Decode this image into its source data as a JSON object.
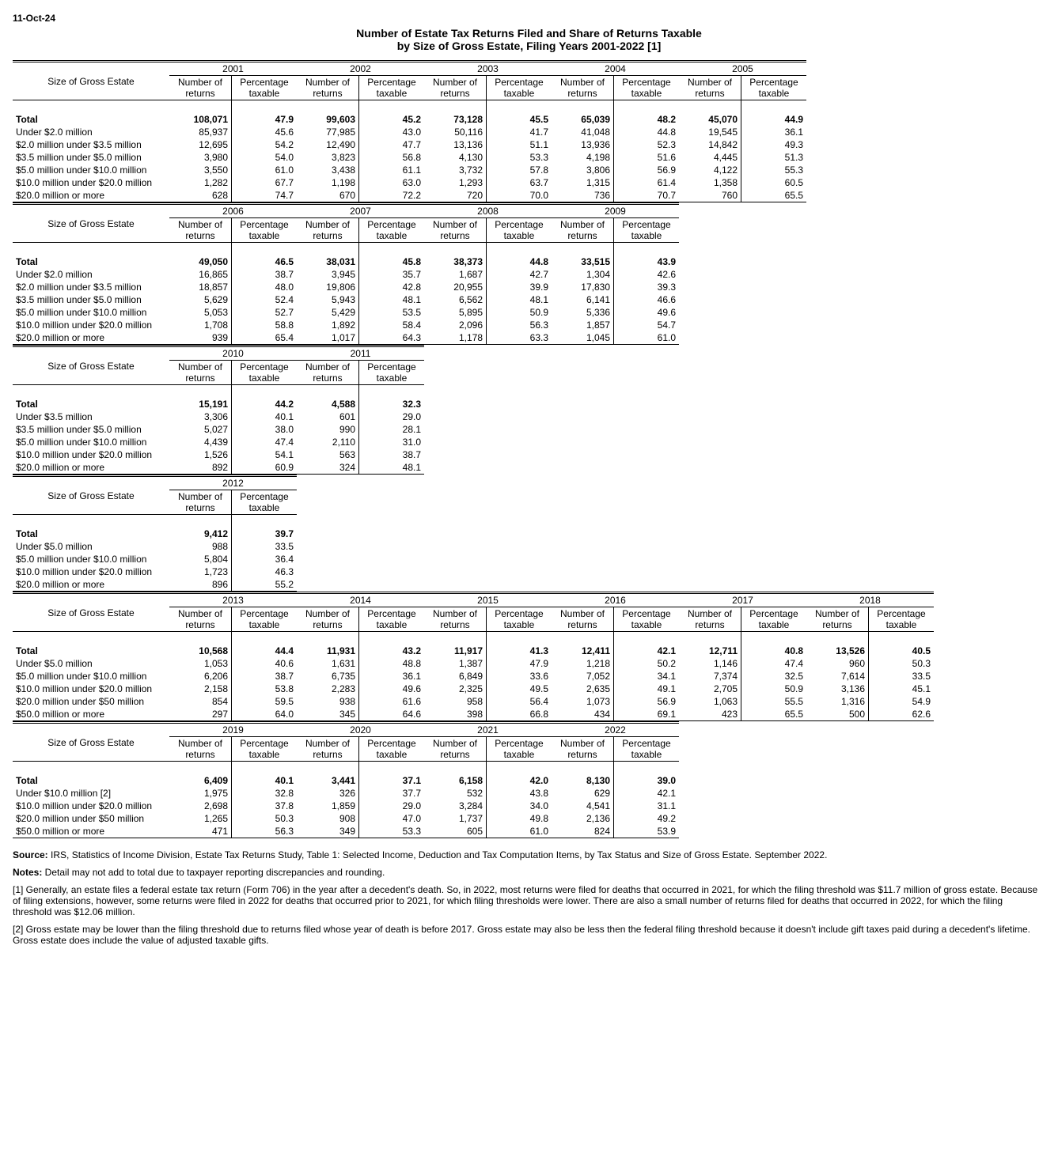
{
  "date": "11-Oct-24",
  "title": "Number of Estate Tax Returns Filed and Share of Returns Taxable",
  "subtitle": "by Size of Gross Estate, Filing Years 2001-2022 [1]",
  "rowHeaderLabel": "Size of Gross Estate",
  "colHeaders": {
    "num": "Number of\nreturns",
    "pct": "Percentage\ntaxable"
  },
  "blocks": [
    {
      "years": [
        "2001",
        "2002",
        "2003",
        "2004",
        "2005"
      ],
      "rowLabels": [
        "Total",
        "Under $2.0 million",
        "$2.0 million under $3.5 million",
        "$3.5 million under $5.0 million",
        "$5.0 million under $10.0 million",
        "$10.0 million under $20.0 million",
        "$20.0 million or more"
      ],
      "data": [
        [
          [
            "108,071",
            "47.9"
          ],
          [
            "99,603",
            "45.2"
          ],
          [
            "73,128",
            "45.5"
          ],
          [
            "65,039",
            "48.2"
          ],
          [
            "45,070",
            "44.9"
          ]
        ],
        [
          [
            "85,937",
            "45.6"
          ],
          [
            "77,985",
            "43.0"
          ],
          [
            "50,116",
            "41.7"
          ],
          [
            "41,048",
            "44.8"
          ],
          [
            "19,545",
            "36.1"
          ]
        ],
        [
          [
            "12,695",
            "54.2"
          ],
          [
            "12,490",
            "47.7"
          ],
          [
            "13,136",
            "51.1"
          ],
          [
            "13,936",
            "52.3"
          ],
          [
            "14,842",
            "49.3"
          ]
        ],
        [
          [
            "3,980",
            "54.0"
          ],
          [
            "3,823",
            "56.8"
          ],
          [
            "4,130",
            "53.3"
          ],
          [
            "4,198",
            "51.6"
          ],
          [
            "4,445",
            "51.3"
          ]
        ],
        [
          [
            "3,550",
            "61.0"
          ],
          [
            "3,438",
            "61.1"
          ],
          [
            "3,732",
            "57.8"
          ],
          [
            "3,806",
            "56.9"
          ],
          [
            "4,122",
            "55.3"
          ]
        ],
        [
          [
            "1,282",
            "67.7"
          ],
          [
            "1,198",
            "63.0"
          ],
          [
            "1,293",
            "63.7"
          ],
          [
            "1,315",
            "61.4"
          ],
          [
            "1,358",
            "60.5"
          ]
        ],
        [
          [
            "628",
            "74.7"
          ],
          [
            "670",
            "72.2"
          ],
          [
            "720",
            "70.0"
          ],
          [
            "736",
            "70.7"
          ],
          [
            "760",
            "65.5"
          ]
        ]
      ]
    },
    {
      "years": [
        "2006",
        "2007",
        "2008",
        "2009"
      ],
      "rowLabels": [
        "Total",
        "Under $2.0 million",
        "$2.0 million under $3.5 million",
        "$3.5 million under $5.0 million",
        "$5.0 million under $10.0 million",
        "$10.0 million under $20.0 million",
        "$20.0 million or more"
      ],
      "data": [
        [
          [
            "49,050",
            "46.5"
          ],
          [
            "38,031",
            "45.8"
          ],
          [
            "38,373",
            "44.8"
          ],
          [
            "33,515",
            "43.9"
          ]
        ],
        [
          [
            "16,865",
            "38.7"
          ],
          [
            "3,945",
            "35.7"
          ],
          [
            "1,687",
            "42.7"
          ],
          [
            "1,304",
            "42.6"
          ]
        ],
        [
          [
            "18,857",
            "48.0"
          ],
          [
            "19,806",
            "42.8"
          ],
          [
            "20,955",
            "39.9"
          ],
          [
            "17,830",
            "39.3"
          ]
        ],
        [
          [
            "5,629",
            "52.4"
          ],
          [
            "5,943",
            "48.1"
          ],
          [
            "6,562",
            "48.1"
          ],
          [
            "6,141",
            "46.6"
          ]
        ],
        [
          [
            "5,053",
            "52.7"
          ],
          [
            "5,429",
            "53.5"
          ],
          [
            "5,895",
            "50.9"
          ],
          [
            "5,336",
            "49.6"
          ]
        ],
        [
          [
            "1,708",
            "58.8"
          ],
          [
            "1,892",
            "58.4"
          ],
          [
            "2,096",
            "56.3"
          ],
          [
            "1,857",
            "54.7"
          ]
        ],
        [
          [
            "939",
            "65.4"
          ],
          [
            "1,017",
            "64.3"
          ],
          [
            "1,178",
            "63.3"
          ],
          [
            "1,045",
            "61.0"
          ]
        ]
      ]
    },
    {
      "years": [
        "2010",
        "2011"
      ],
      "rowLabels": [
        "Total",
        "Under $3.5 million",
        "$3.5 million under $5.0 million",
        "$5.0 million under $10.0 million",
        "$10.0 million under $20.0 million",
        "$20.0 million or more"
      ],
      "data": [
        [
          [
            "15,191",
            "44.2"
          ],
          [
            "4,588",
            "32.3"
          ]
        ],
        [
          [
            "3,306",
            "40.1"
          ],
          [
            "601",
            "29.0"
          ]
        ],
        [
          [
            "5,027",
            "38.0"
          ],
          [
            "990",
            "28.1"
          ]
        ],
        [
          [
            "4,439",
            "47.4"
          ],
          [
            "2,110",
            "31.0"
          ]
        ],
        [
          [
            "1,526",
            "54.1"
          ],
          [
            "563",
            "38.7"
          ]
        ],
        [
          [
            "892",
            "60.9"
          ],
          [
            "324",
            "48.1"
          ]
        ]
      ]
    },
    {
      "years": [
        "2012"
      ],
      "rowLabels": [
        "Total",
        "Under $5.0 million",
        "$5.0 million under $10.0 million",
        "$10.0 million under $20.0 million",
        "$20.0 million or more"
      ],
      "data": [
        [
          [
            "9,412",
            "39.7"
          ]
        ],
        [
          [
            "988",
            "33.5"
          ]
        ],
        [
          [
            "5,804",
            "36.4"
          ]
        ],
        [
          [
            "1,723",
            "46.3"
          ]
        ],
        [
          [
            "896",
            "55.2"
          ]
        ]
      ]
    },
    {
      "years": [
        "2013",
        "2014",
        "2015",
        "2016",
        "2017",
        "2018"
      ],
      "rowLabels": [
        "Total",
        "Under $5.0 million",
        "$5.0 million under $10.0 million",
        "$10.0 million under $20.0 million",
        "$20.0 million under $50 million",
        "$50.0 million or more"
      ],
      "data": [
        [
          [
            "10,568",
            "44.4"
          ],
          [
            "11,931",
            "43.2"
          ],
          [
            "11,917",
            "41.3"
          ],
          [
            "12,411",
            "42.1"
          ],
          [
            "12,711",
            "40.8"
          ],
          [
            "13,526",
            "40.5"
          ]
        ],
        [
          [
            "1,053",
            "40.6"
          ],
          [
            "1,631",
            "48.8"
          ],
          [
            "1,387",
            "47.9"
          ],
          [
            "1,218",
            "50.2"
          ],
          [
            "1,146",
            "47.4"
          ],
          [
            "960",
            "50.3"
          ]
        ],
        [
          [
            "6,206",
            "38.7"
          ],
          [
            "6,735",
            "36.1"
          ],
          [
            "6,849",
            "33.6"
          ],
          [
            "7,052",
            "34.1"
          ],
          [
            "7,374",
            "32.5"
          ],
          [
            "7,614",
            "33.5"
          ]
        ],
        [
          [
            "2,158",
            "53.8"
          ],
          [
            "2,283",
            "49.6"
          ],
          [
            "2,325",
            "49.5"
          ],
          [
            "2,635",
            "49.1"
          ],
          [
            "2,705",
            "50.9"
          ],
          [
            "3,136",
            "45.1"
          ]
        ],
        [
          [
            "854",
            "59.5"
          ],
          [
            "938",
            "61.6"
          ],
          [
            "958",
            "56.4"
          ],
          [
            "1,073",
            "56.9"
          ],
          [
            "1,063",
            "55.5"
          ],
          [
            "1,316",
            "54.9"
          ]
        ],
        [
          [
            "297",
            "64.0"
          ],
          [
            "345",
            "64.6"
          ],
          [
            "398",
            "66.8"
          ],
          [
            "434",
            "69.1"
          ],
          [
            "423",
            "65.5"
          ],
          [
            "500",
            "62.6"
          ]
        ]
      ]
    },
    {
      "years": [
        "2019",
        "2020",
        "2021",
        "2022"
      ],
      "rowLabels": [
        "Total",
        "Under $10.0 million [2]",
        "$10.0 million under $20.0 million",
        "$20.0 million under $50 million",
        "$50.0 million or more"
      ],
      "data": [
        [
          [
            "6,409",
            "40.1"
          ],
          [
            "3,441",
            "37.1"
          ],
          [
            "6,158",
            "42.0"
          ],
          [
            "8,130",
            "39.0"
          ]
        ],
        [
          [
            "1,975",
            "32.8"
          ],
          [
            "326",
            "37.7"
          ],
          [
            "532",
            "43.8"
          ],
          [
            "629",
            "42.1"
          ]
        ],
        [
          [
            "2,698",
            "37.8"
          ],
          [
            "1,859",
            "29.0"
          ],
          [
            "3,284",
            "34.0"
          ],
          [
            "4,541",
            "31.1"
          ]
        ],
        [
          [
            "1,265",
            "50.3"
          ],
          [
            "908",
            "47.0"
          ],
          [
            "1,737",
            "49.8"
          ],
          [
            "2,136",
            "49.2"
          ]
        ],
        [
          [
            "471",
            "56.3"
          ],
          [
            "349",
            "53.3"
          ],
          [
            "605",
            "61.0"
          ],
          [
            "824",
            "53.9"
          ]
        ]
      ]
    }
  ],
  "source": "Source:",
  "sourceText": " IRS, Statistics of Income Division, Estate Tax Returns Study, Table 1: Selected Income, Deduction and Tax Computation Items, by Tax Status and Size of Gross Estate. September 2022.",
  "notesLabel": "Notes:",
  "notesText": " Detail may not add to total due to taxpayer reporting discrepancies and rounding.",
  "footnote1": "[1] Generally, an estate files a federal estate tax return (Form 706) in the year after a decedent's death. So, in 2022, most returns were filed for deaths that occurred in 2021, for which the filing threshold was $11.7 million of gross estate. Because of filing extensions, however, some returns were filed in 2022 for deaths that occurred prior to 2021, for which filing thresholds were lower. There are also a small number of returns filed for deaths that occurred in 2022, for which the filing threshold was $12.06 million.",
  "footnote2": "[2] Gross estate may be lower than the filing threshold due to returns filed whose year of death is before 2017. Gross estate may also be less then the federal filing threshold because it doesn't include gift taxes paid during a decedent's lifetime. Gross estate does include the value of adjusted taxable gifts.",
  "colWidths": {
    "num": 70,
    "pct": 74
  }
}
